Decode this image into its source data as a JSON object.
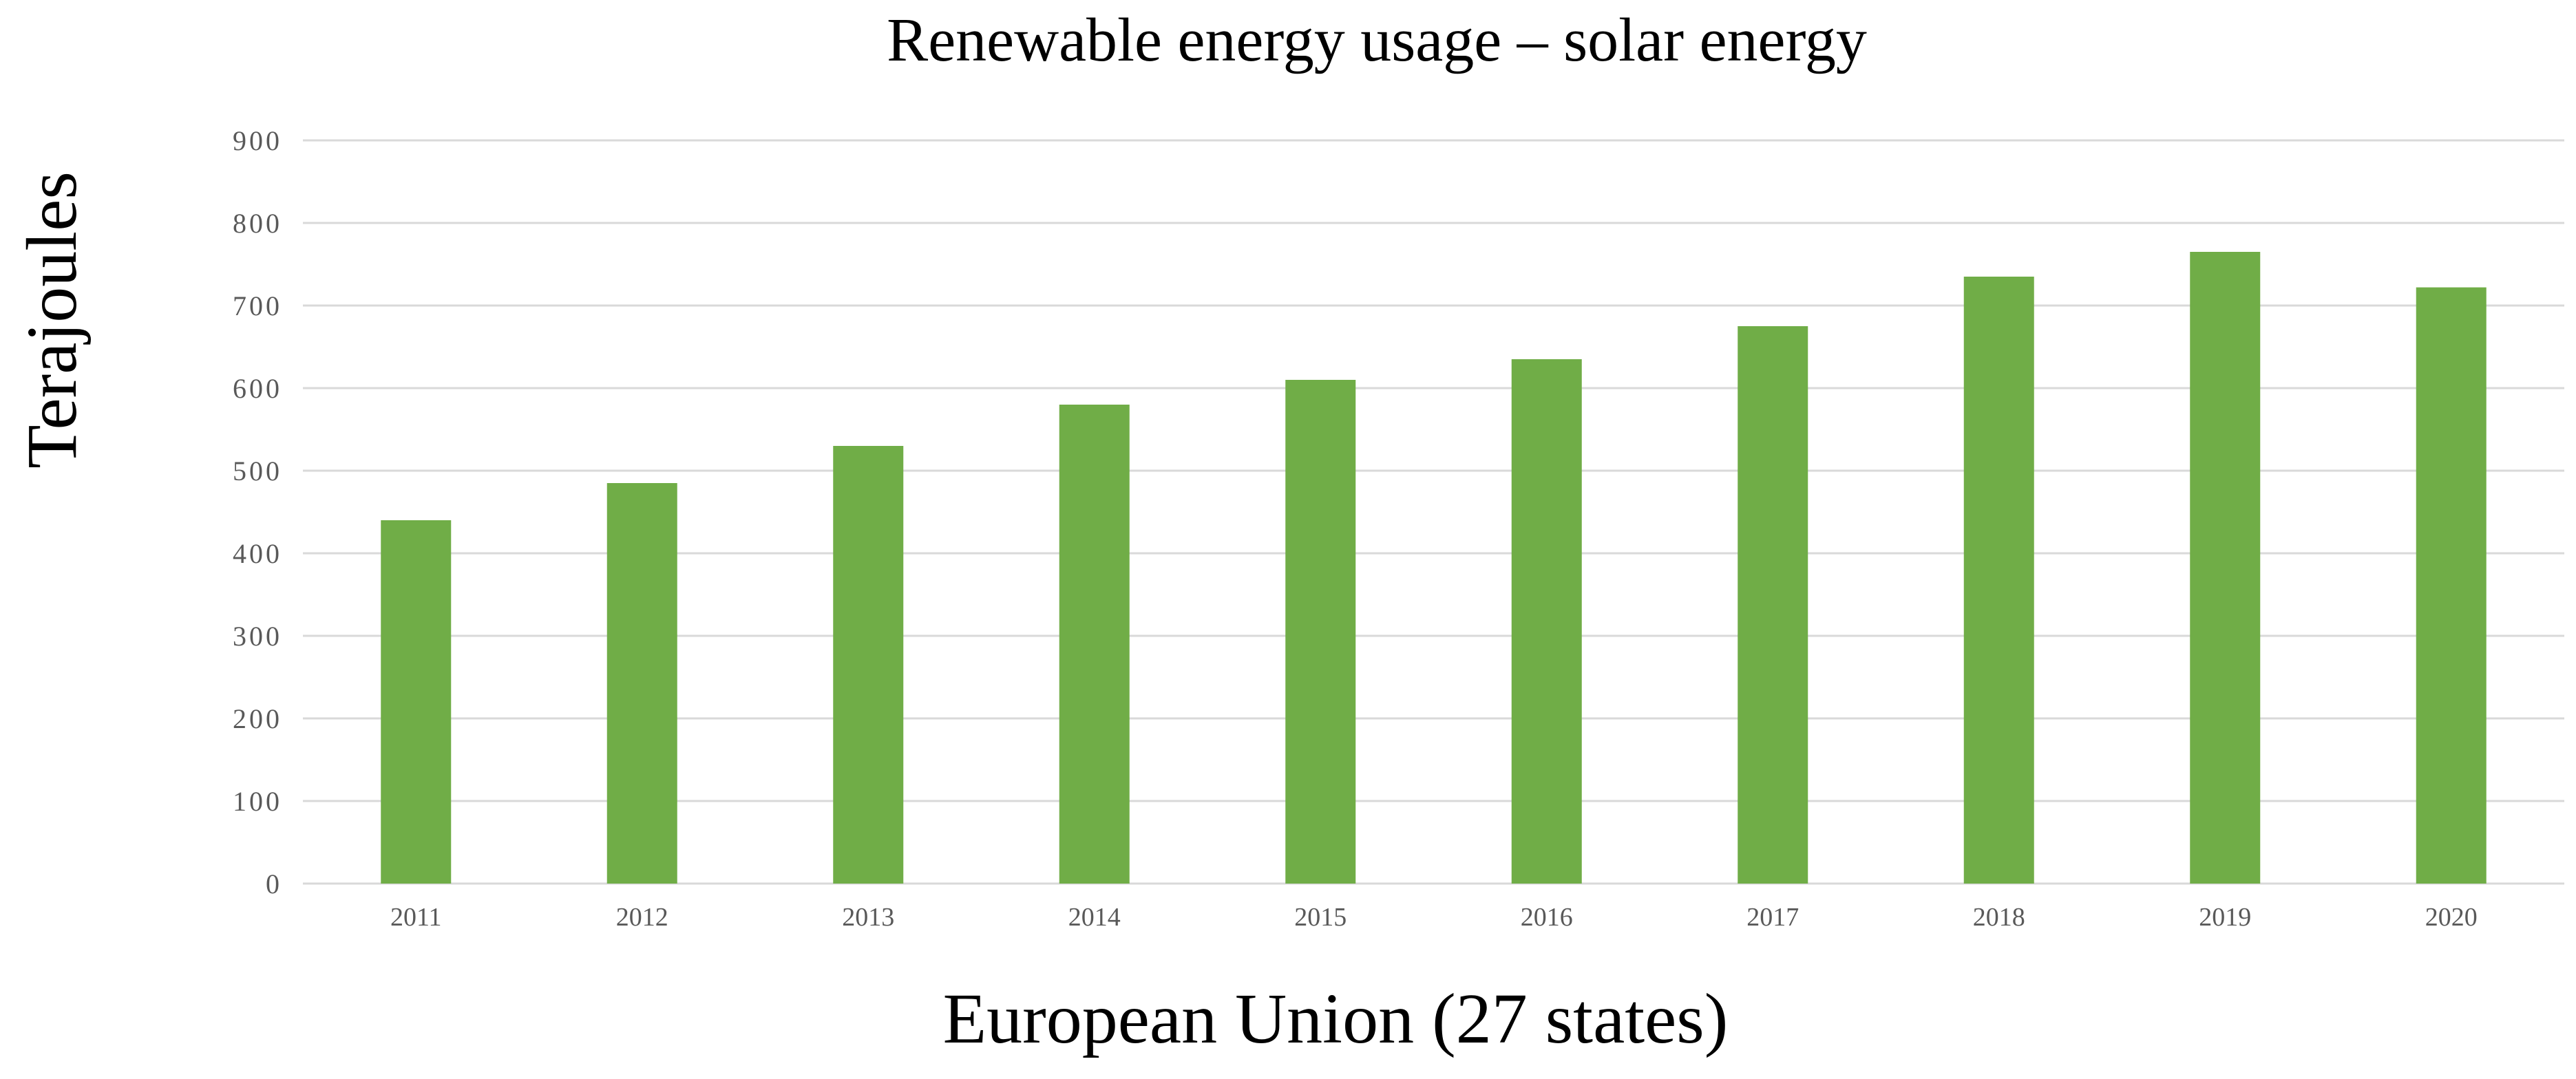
{
  "chart_data": {
    "type": "bar",
    "title": "Renewable energy usage – solar energy",
    "xlabel": "European Union (27 states)",
    "ylabel": "Terajoules",
    "categories": [
      "2011",
      "2012",
      "2013",
      "2014",
      "2015",
      "2016",
      "2017",
      "2018",
      "2019",
      "2020"
    ],
    "values": [
      440,
      485,
      530,
      580,
      610,
      635,
      675,
      735,
      765,
      722
    ],
    "ylim": [
      0,
      900
    ],
    "yticks": [
      0,
      100,
      200,
      300,
      400,
      500,
      600,
      700,
      800,
      900
    ],
    "ytick_labels": [
      "0",
      "100",
      "200",
      "300",
      "400",
      "500",
      "600",
      "700",
      "800",
      "900"
    ],
    "grid": true,
    "legend": "none",
    "bar_color": "#70ad47"
  }
}
